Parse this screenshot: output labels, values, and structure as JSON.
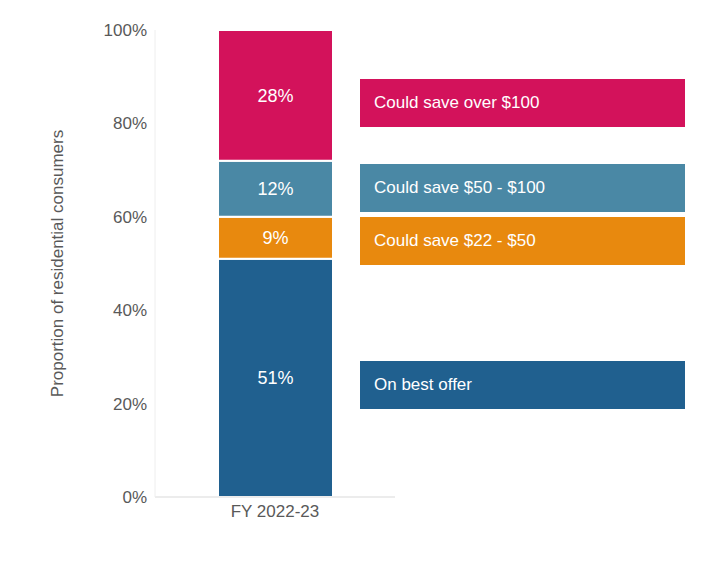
{
  "chart_data": {
    "type": "bar",
    "stacked": true,
    "data_labels": true,
    "grid": false,
    "legend": "right",
    "y_label": "Proportion of residential consumers",
    "categories": [
      "FY 2022-23"
    ],
    "series": [
      {
        "name": "On best offer",
        "color": "#20608f",
        "values": [
          51
        ],
        "value_labels": [
          "51%"
        ]
      },
      {
        "name": "Could save $22 - $50",
        "color": "#e8890e",
        "values": [
          9
        ],
        "value_labels": [
          "9%"
        ]
      },
      {
        "name": "Could save $50 - $100",
        "color": "#4a88a5",
        "values": [
          12
        ],
        "value_labels": [
          "12%"
        ]
      },
      {
        "name": "Could save over $100",
        "color": "#d3125b",
        "values": [
          28
        ],
        "value_labels": [
          "28%"
        ]
      }
    ],
    "ylim": [
      0,
      100
    ],
    "yticks": [
      {
        "value": 0,
        "label": "0%"
      },
      {
        "value": 20,
        "label": "20%"
      },
      {
        "value": 40,
        "label": "40%"
      },
      {
        "value": 60,
        "label": "60%"
      },
      {
        "value": 80,
        "label": "80%"
      },
      {
        "value": 100,
        "label": "100%"
      }
    ]
  }
}
